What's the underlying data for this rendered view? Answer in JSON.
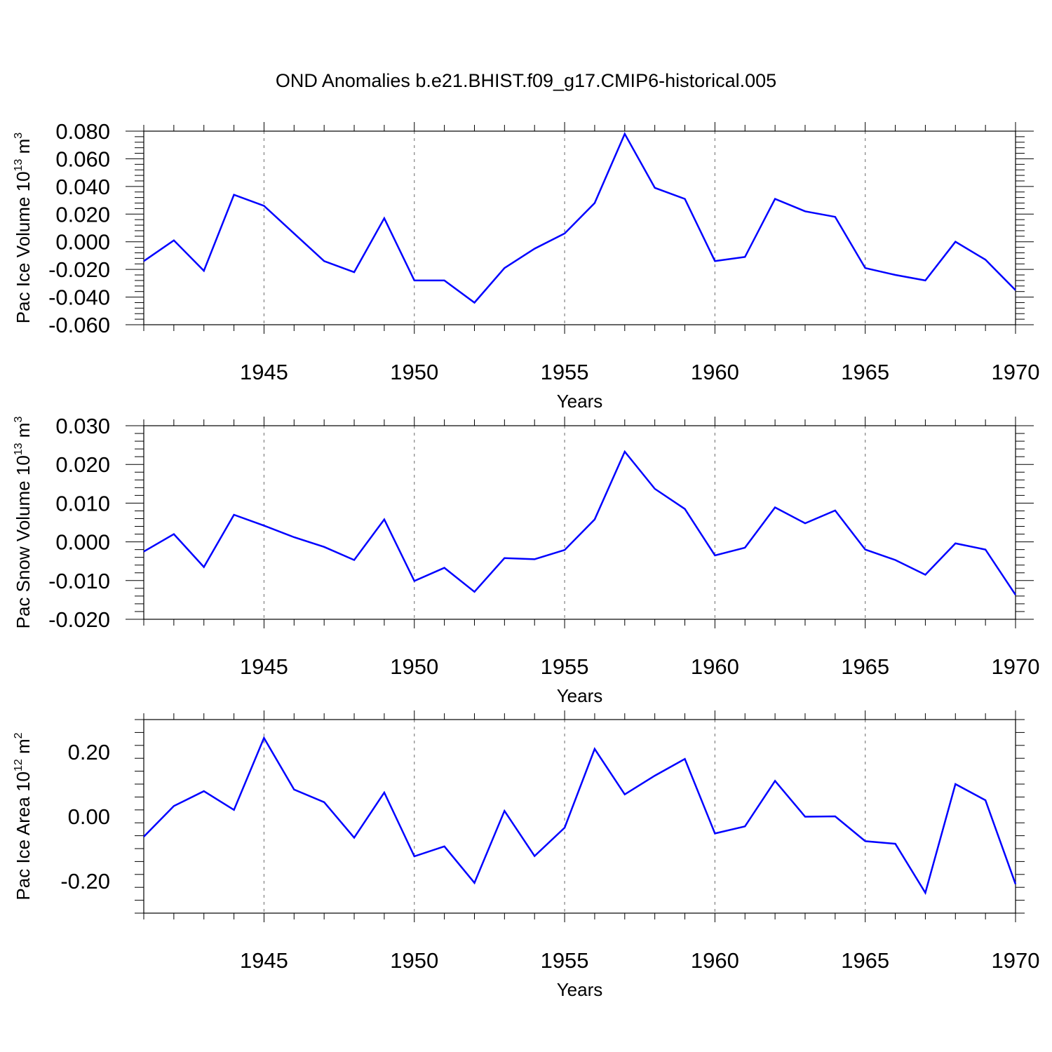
{
  "figure": {
    "title": "OND Anomalies b.e21.BHIST.f09_g17.CMIP6-historical.005"
  },
  "colors": {
    "line": "#0000ff",
    "axis": "#000000",
    "grid": "#808080"
  },
  "chart_data": [
    {
      "type": "line",
      "title": "",
      "xlabel": "Years",
      "ylabel": {
        "text": "Pac Ice Volume 10",
        "exponent": "13",
        "unit": " m",
        "unit_exponent": "3"
      },
      "xlim": [
        1941,
        1970
      ],
      "ylim": [
        -0.06,
        0.08
      ],
      "x_ticks": [
        "1945",
        "1950",
        "1955",
        "1960",
        "1965",
        "1970"
      ],
      "y_ticks": [
        "-0.060",
        "-0.040",
        "-0.020",
        "0.000",
        "0.020",
        "0.040",
        "0.060",
        "0.080"
      ],
      "grid": "vertical dashed at labeled years",
      "series": [
        {
          "x": [
            1941,
            1942,
            1943,
            1944,
            1945,
            1946,
            1947,
            1948,
            1949,
            1950,
            1951,
            1952,
            1953,
            1954,
            1955,
            1956,
            1957,
            1958,
            1959,
            1960,
            1961,
            1962,
            1963,
            1964,
            1965,
            1966,
            1967,
            1968,
            1969,
            1970
          ],
          "values": [
            -0.014,
            0.001,
            -0.021,
            0.034,
            0.026,
            0.006,
            -0.014,
            -0.022,
            0.017,
            -0.028,
            -0.028,
            -0.044,
            -0.019,
            -0.005,
            0.006,
            0.028,
            0.078,
            0.039,
            0.031,
            -0.014,
            -0.011,
            0.031,
            0.022,
            0.018,
            -0.019,
            -0.024,
            -0.028,
            0.0,
            -0.013,
            -0.035
          ]
        }
      ]
    },
    {
      "type": "line",
      "title": "",
      "xlabel": "Years",
      "ylabel": {
        "text": "Pac Snow Volume 10",
        "exponent": "13",
        "unit": " m",
        "unit_exponent": "3"
      },
      "xlim": [
        1941,
        1970
      ],
      "ylim": [
        -0.02,
        0.03
      ],
      "x_ticks": [
        "1945",
        "1950",
        "1955",
        "1960",
        "1965",
        "1970"
      ],
      "y_ticks": [
        "-0.020",
        "-0.010",
        "0.000",
        "0.010",
        "0.020",
        "0.030"
      ],
      "grid": "vertical dashed at labeled years",
      "series": [
        {
          "x": [
            1941,
            1942,
            1943,
            1944,
            1945,
            1946,
            1947,
            1948,
            1949,
            1950,
            1951,
            1952,
            1953,
            1954,
            1955,
            1956,
            1957,
            1958,
            1959,
            1960,
            1961,
            1962,
            1963,
            1964,
            1965,
            1966,
            1967,
            1968,
            1969,
            1970
          ],
          "values": [
            -0.0025,
            0.002,
            -0.0065,
            0.007,
            0.0042,
            0.0012,
            -0.0013,
            -0.0047,
            0.0058,
            -0.0101,
            -0.0067,
            -0.0129,
            -0.0042,
            -0.0045,
            -0.0021,
            0.0058,
            0.0233,
            0.0137,
            0.0085,
            -0.0035,
            -0.0015,
            0.0089,
            0.0048,
            0.0081,
            -0.002,
            -0.0047,
            -0.0085,
            -0.0004,
            -0.002,
            -0.0137
          ]
        }
      ]
    },
    {
      "type": "line",
      "title": "",
      "xlabel": "Years",
      "ylabel": {
        "text": "Pac Ice Area 10",
        "exponent": "12",
        "unit": " m",
        "unit_exponent": "2"
      },
      "xlim": [
        1941,
        1970
      ],
      "ylim": [
        -0.3,
        0.3
      ],
      "x_ticks": [
        "1945",
        "1950",
        "1955",
        "1960",
        "1965",
        "1970"
      ],
      "y_ticks": [
        "-0.20",
        "0.00",
        "0.20"
      ],
      "grid": "vertical dashed at labeled years",
      "series": [
        {
          "x": [
            1941,
            1942,
            1943,
            1944,
            1945,
            1946,
            1947,
            1948,
            1949,
            1950,
            1951,
            1952,
            1953,
            1954,
            1955,
            1956,
            1957,
            1958,
            1959,
            1960,
            1961,
            1962,
            1963,
            1964,
            1965,
            1966,
            1967,
            1968,
            1969,
            1970
          ],
          "values": [
            -0.063,
            0.032,
            0.078,
            0.02,
            0.243,
            0.083,
            0.044,
            -0.066,
            0.074,
            -0.124,
            -0.093,
            -0.206,
            0.017,
            -0.123,
            -0.035,
            0.209,
            0.068,
            0.126,
            0.178,
            -0.053,
            -0.031,
            0.11,
            -0.001,
            0.0,
            -0.077,
            -0.085,
            -0.237,
            0.1,
            0.05,
            -0.21
          ]
        }
      ]
    }
  ]
}
